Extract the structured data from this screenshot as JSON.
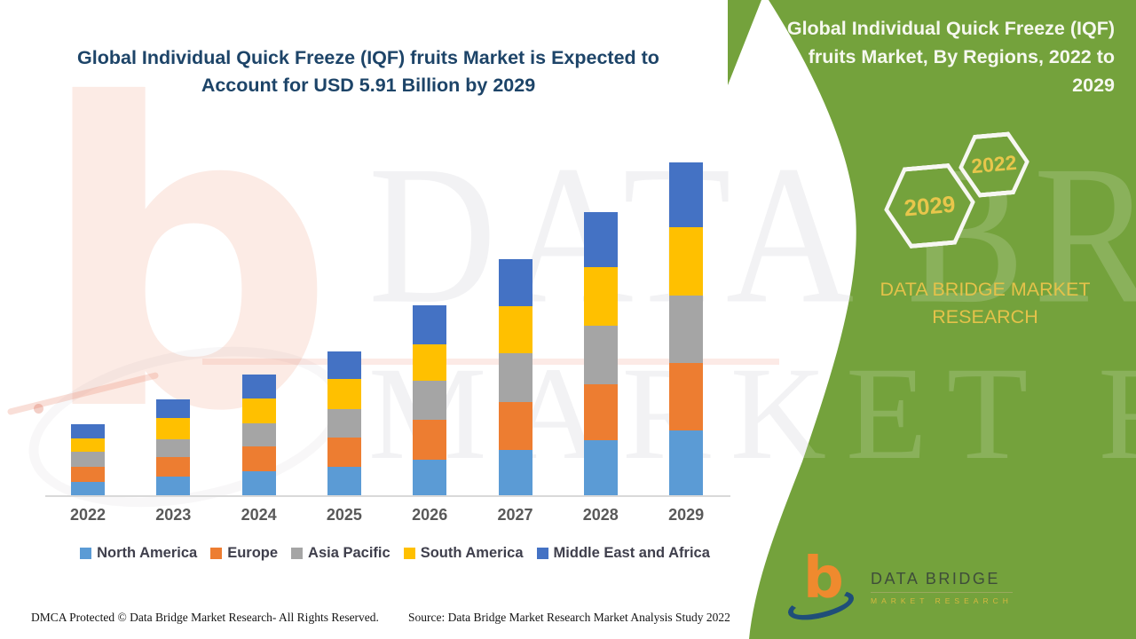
{
  "accent_colors": {
    "panel_green": "#74a23c",
    "gold_text": "#e8c64b",
    "title_navy": "#1d4468",
    "axis_text": "#595959",
    "legend_text": "#3f3f4c"
  },
  "main_title": {
    "text": "Global Individual Quick Freeze (IQF) fruits Market is Expected to Account for USD 5.91 Billion by 2029"
  },
  "side_panel": {
    "title": "Global Individual Quick Freeze (IQF) fruits Market, By Regions, 2022 to 2029",
    "hexagon_front_label": "2029",
    "hexagon_back_label": "2022",
    "brand_caption": "DATA BRIDGE MARKET RESEARCH"
  },
  "logo": {
    "letter": "b",
    "title": "DATA BRIDGE",
    "subtitle": "MARKET RESEARCH"
  },
  "watermark": {
    "letter": "b",
    "line1": "DATA BRIDGE",
    "line2": "MARKET RESEARCH"
  },
  "footer": {
    "dmca": "DMCA Protected © Data Bridge Market Research- All Rights Reserved.",
    "source": "Source: Data Bridge Market Research Market Analysis Study 2022"
  },
  "chart_data": {
    "type": "bar",
    "stacked": true,
    "unit": "USD Billion",
    "grid": false,
    "legend_position": "bottom",
    "xlabel": "",
    "ylabel": "",
    "ylim": [
      0,
      6.2
    ],
    "categories": [
      "2022",
      "2023",
      "2024",
      "2025",
      "2026",
      "2027",
      "2028",
      "2029"
    ],
    "series": [
      {
        "name": "North America",
        "color": "#5B9BD5",
        "values": [
          0.24,
          0.33,
          0.43,
          0.5,
          0.63,
          0.8,
          0.98,
          1.15
        ]
      },
      {
        "name": "Europe",
        "color": "#ED7D31",
        "values": [
          0.26,
          0.35,
          0.43,
          0.52,
          0.71,
          0.85,
          1.0,
          1.2
        ]
      },
      {
        "name": "Asia Pacific",
        "color": "#A5A5A5",
        "values": [
          0.27,
          0.32,
          0.42,
          0.51,
          0.7,
          0.88,
          1.03,
          1.2
        ]
      },
      {
        "name": "South America",
        "color": "#FFC000",
        "values": [
          0.24,
          0.38,
          0.44,
          0.53,
          0.65,
          0.83,
          1.04,
          1.21
        ]
      },
      {
        "name": "Middle East and Africa",
        "color": "#4472C4",
        "values": [
          0.25,
          0.32,
          0.42,
          0.49,
          0.69,
          0.84,
          0.99,
          1.15
        ]
      }
    ],
    "totals": [
      1.26,
      1.7,
      2.14,
      2.55,
      3.38,
      4.2,
      5.04,
      5.91
    ],
    "highlight_total": {
      "year": "2029",
      "value_usd_billion": 5.91
    }
  }
}
